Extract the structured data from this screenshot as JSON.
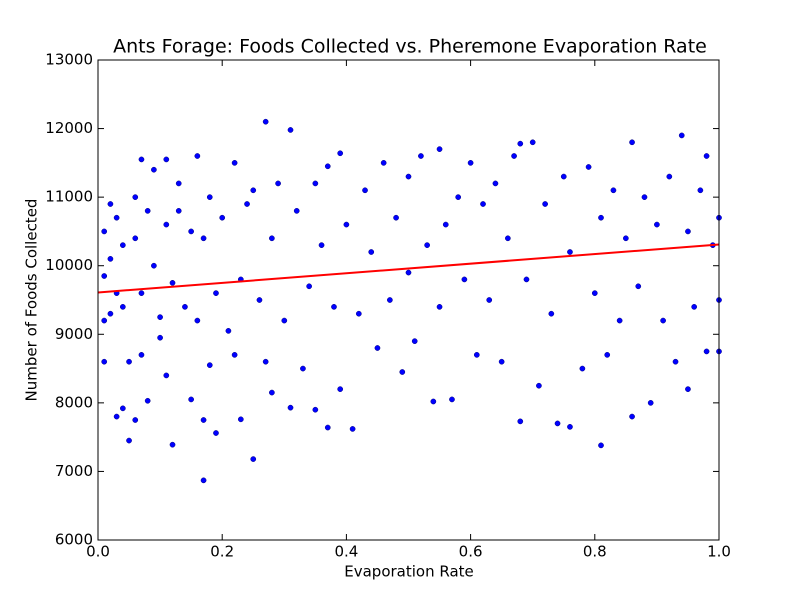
{
  "chart_data": {
    "type": "scatter",
    "title": "Ants Forage: Foods Collected vs. Pheremone Evaporation Rate",
    "x_label": "Evaporation Rate",
    "y_label": "Number of Foods Collected",
    "xlim": [
      0,
      1
    ],
    "ylim": [
      6000,
      13000
    ],
    "xticks": [
      {
        "value": 0,
        "label": "0.0"
      },
      0.2,
      0.4,
      0.6,
      0.8,
      {
        "value": 1,
        "label": "1.0"
      }
    ],
    "yticks": [
      6000,
      7000,
      8000,
      9000,
      10000,
      11000,
      12000,
      13000
    ],
    "grid": false,
    "series": [
      {
        "type": "scatter",
        "color": "#0000ff",
        "x": [
          0.01,
          0.01,
          0.01,
          0.01,
          0.02,
          0.02,
          0.02,
          0.03,
          0.03,
          0.03,
          0.04,
          0.04,
          0.04,
          0.05,
          0.05,
          0.06,
          0.06,
          0.06,
          0.07,
          0.07,
          0.07,
          0.08,
          0.08,
          0.09,
          0.09,
          0.1,
          0.1,
          0.11,
          0.11,
          0.11,
          0.12,
          0.12,
          0.13,
          0.13,
          0.14,
          0.15,
          0.15,
          0.16,
          0.16,
          0.17,
          0.17,
          0.17,
          0.18,
          0.18,
          0.19,
          0.19,
          0.2,
          0.21,
          0.22,
          0.22,
          0.23,
          0.23,
          0.24,
          0.25,
          0.25,
          0.26,
          0.27,
          0.27,
          0.28,
          0.28,
          0.29,
          0.3,
          0.31,
          0.31,
          0.32,
          0.33,
          0.34,
          0.35,
          0.35,
          0.36,
          0.37,
          0.37,
          0.38,
          0.39,
          0.39,
          0.4,
          0.41,
          0.42,
          0.43,
          0.44,
          0.45,
          0.46,
          0.47,
          0.48,
          0.49,
          0.5,
          0.5,
          0.51,
          0.52,
          0.53,
          0.54,
          0.55,
          0.55,
          0.56,
          0.57,
          0.58,
          0.59,
          0.6,
          0.61,
          0.62,
          0.63,
          0.64,
          0.65,
          0.66,
          0.67,
          0.68,
          0.68,
          0.69,
          0.7,
          0.71,
          0.72,
          0.73,
          0.74,
          0.75,
          0.76,
          0.76,
          0.78,
          0.79,
          0.8,
          0.81,
          0.81,
          0.82,
          0.83,
          0.84,
          0.85,
          0.86,
          0.86,
          0.87,
          0.88,
          0.89,
          0.9,
          0.91,
          0.92,
          0.93,
          0.94,
          0.95,
          0.95,
          0.96,
          0.97,
          0.98,
          0.98,
          0.99,
          1.0,
          1.0,
          1.0
        ],
        "values": [
          9850,
          10500,
          9200,
          8600,
          10100,
          9300,
          10900,
          9600,
          10700,
          7800,
          9400,
          7920,
          10300,
          8600,
          7450,
          11000,
          10400,
          7750,
          11550,
          9600,
          8700,
          10800,
          8030,
          11400,
          10000,
          9250,
          8950,
          11550,
          10600,
          8400,
          7390,
          9750,
          11200,
          10800,
          9400,
          8050,
          10500,
          11600,
          9200,
          6870,
          7750,
          10400,
          8550,
          11000,
          7560,
          9600,
          10700,
          9050,
          11500,
          8700,
          7760,
          9800,
          10900,
          7180,
          11100,
          9500,
          12100,
          8600,
          8150,
          10400,
          11200,
          9200,
          11980,
          7930,
          10800,
          8500,
          9700,
          11200,
          7900,
          10300,
          11450,
          7640,
          9400,
          11640,
          8200,
          10600,
          7620,
          9300,
          11100,
          10200,
          8800,
          11500,
          9500,
          10700,
          8450,
          11300,
          9900,
          8900,
          11600,
          10300,
          8020,
          11700,
          9400,
          10600,
          8050,
          11000,
          9800,
          11500,
          8700,
          10900,
          9500,
          11200,
          8600,
          10400,
          11600,
          7730,
          11780,
          9800,
          11800,
          8250,
          10900,
          9300,
          7700,
          11300,
          7650,
          10200,
          8500,
          11440,
          9600,
          7380,
          10700,
          8700,
          11100,
          9200,
          10400,
          11800,
          7800,
          9700,
          11000,
          8000,
          10600,
          9200,
          11300,
          8600,
          11900,
          8200,
          10500,
          9400,
          11100,
          11600,
          8750,
          10300,
          9500,
          8750,
          10700
        ]
      },
      {
        "type": "line",
        "color": "#ff0000",
        "x": [
          0,
          1
        ],
        "values": [
          9610,
          10310
        ]
      }
    ]
  }
}
